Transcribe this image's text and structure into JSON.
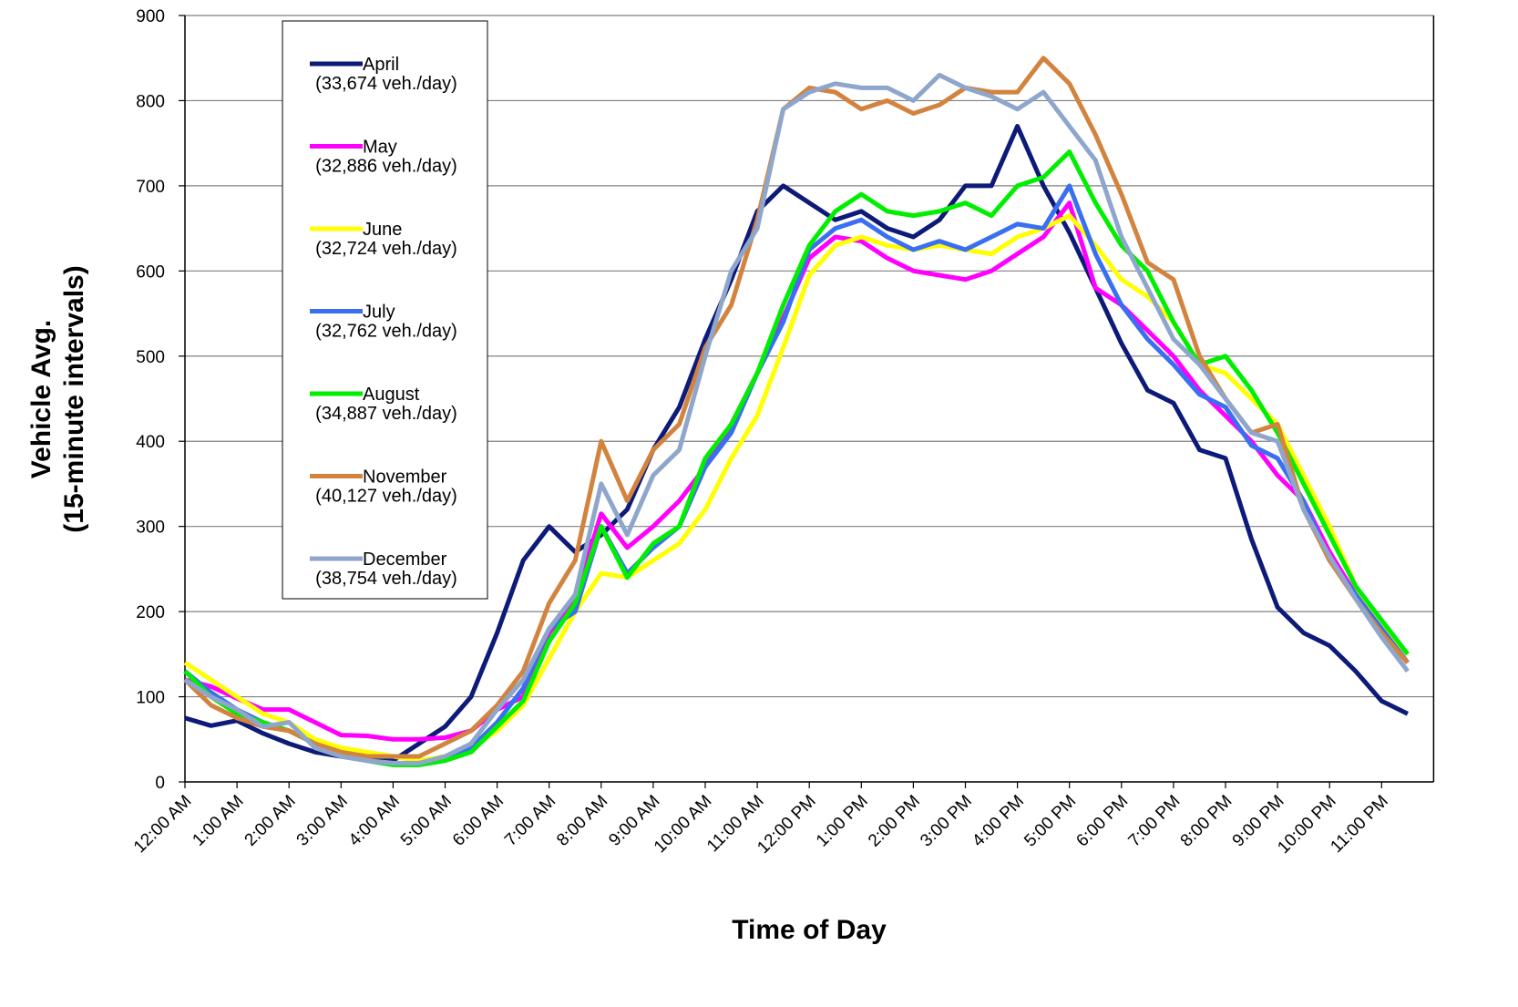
{
  "chart_data": {
    "type": "line",
    "xlabel": "Time of Day",
    "ylabel": [
      "Vehicle Avg.",
      "(15-minute intervals)"
    ],
    "categories": [
      "12:00 AM",
      null,
      "1:00 AM",
      null,
      "2:00 AM",
      null,
      "3:00 AM",
      null,
      "4:00 AM",
      null,
      "5:00 AM",
      null,
      "6:00 AM",
      null,
      "7:00 AM",
      null,
      "8:00 AM",
      null,
      "9:00 AM",
      null,
      "10:00 AM",
      null,
      "11:00 AM",
      null,
      "12:00 PM",
      null,
      "1:00 PM",
      null,
      "2:00 PM",
      null,
      "3:00 PM",
      null,
      "4:00 PM",
      null,
      "5:00 PM",
      null,
      "6:00 PM",
      null,
      "7:00 PM",
      null,
      "8:00 PM",
      null,
      "9:00 PM",
      null,
      "10:00 PM",
      null,
      "11:00 PM",
      null
    ],
    "ylim": [
      0,
      900
    ],
    "yticks": [
      0,
      100,
      200,
      300,
      400,
      500,
      600,
      700,
      800,
      900
    ],
    "grid": true,
    "series": [
      {
        "name": "April",
        "daily_volume_label": "(33,674 veh./day)",
        "color": "#0d1a78",
        "values": [
          75,
          66,
          72,
          57,
          45,
          35,
          30,
          28,
          25,
          45,
          65,
          100,
          175,
          260,
          300,
          270,
          290,
          320,
          390,
          440,
          520,
          590,
          670,
          700,
          680,
          660,
          670,
          650,
          640,
          660,
          700,
          700,
          770,
          700,
          645,
          580,
          515,
          460,
          445,
          390,
          380,
          285,
          205,
          175,
          160,
          130,
          95,
          80
        ]
      },
      {
        "name": "May",
        "daily_volume_label": "(32,886 veh./day)",
        "color": "#ff00ff",
        "values": [
          120,
          112,
          98,
          85,
          85,
          70,
          55,
          54,
          50,
          50,
          52,
          60,
          85,
          100,
          175,
          215,
          315,
          275,
          300,
          330,
          370,
          420,
          480,
          545,
          615,
          640,
          635,
          615,
          600,
          595,
          590,
          600,
          620,
          640,
          680,
          580,
          560,
          530,
          500,
          460,
          430,
          400,
          360,
          330,
          270,
          220,
          180,
          140
        ]
      },
      {
        "name": "June",
        "daily_volume_label": "(32,724 veh./day)",
        "color": "#ffff00",
        "values": [
          140,
          120,
          100,
          80,
          70,
          50,
          40,
          35,
          30,
          25,
          30,
          40,
          60,
          90,
          145,
          200,
          245,
          240,
          260,
          280,
          320,
          380,
          430,
          510,
          595,
          630,
          640,
          630,
          625,
          630,
          625,
          620,
          640,
          650,
          665,
          630,
          590,
          570,
          540,
          490,
          480,
          450,
          420,
          360,
          300,
          230,
          185,
          150
        ]
      },
      {
        "name": "July",
        "daily_volume_label": "(32,762 veh./day)",
        "color": "#3a6ff0",
        "values": [
          130,
          105,
          85,
          70,
          60,
          45,
          30,
          25,
          20,
          20,
          25,
          40,
          70,
          110,
          180,
          200,
          300,
          245,
          275,
          300,
          370,
          410,
          480,
          540,
          625,
          650,
          660,
          640,
          625,
          635,
          625,
          640,
          655,
          650,
          700,
          620,
          560,
          520,
          490,
          455,
          440,
          395,
          380,
          330,
          260,
          220,
          180,
          140
        ]
      },
      {
        "name": "August",
        "daily_volume_label": "(34,887 veh./day)",
        "color": "#00ee00",
        "values": [
          130,
          100,
          80,
          70,
          60,
          45,
          30,
          25,
          20,
          20,
          25,
          35,
          65,
          95,
          165,
          210,
          300,
          240,
          280,
          300,
          380,
          420,
          480,
          560,
          630,
          670,
          690,
          670,
          665,
          670,
          680,
          665,
          700,
          710,
          740,
          680,
          630,
          600,
          540,
          490,
          500,
          460,
          410,
          350,
          290,
          230,
          190,
          150
        ]
      },
      {
        "name": "November",
        "daily_volume_label": "(40,127 veh./day)",
        "color": "#d2843f",
        "values": [
          120,
          90,
          75,
          65,
          60,
          45,
          35,
          30,
          30,
          30,
          45,
          60,
          90,
          130,
          210,
          260,
          400,
          330,
          390,
          420,
          510,
          560,
          660,
          790,
          815,
          810,
          790,
          800,
          785,
          795,
          815,
          810,
          810,
          850,
          820,
          760,
          690,
          610,
          590,
          500,
          450,
          410,
          420,
          320,
          260,
          215,
          175,
          140
        ]
      },
      {
        "name": "December",
        "daily_volume_label": "(38,754 veh./day)",
        "color": "#8fa6cc",
        "values": [
          120,
          100,
          85,
          65,
          70,
          40,
          30,
          25,
          22,
          22,
          30,
          45,
          85,
          120,
          180,
          220,
          350,
          290,
          360,
          390,
          500,
          600,
          650,
          790,
          810,
          820,
          815,
          815,
          800,
          830,
          815,
          805,
          790,
          810,
          770,
          730,
          640,
          580,
          520,
          490,
          450,
          410,
          400,
          320,
          265,
          215,
          170,
          130
        ]
      }
    ]
  }
}
